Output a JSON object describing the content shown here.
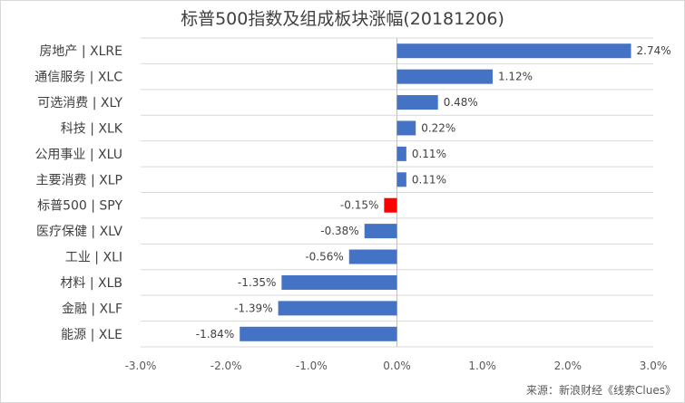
{
  "chart_data": {
    "type": "bar",
    "orientation": "horizontal",
    "title": "标普500指数及组成板块涨幅(20181206)",
    "categories": [
      "房地产 | XLRE",
      "通信服务 | XLC",
      "可选消费 | XLY",
      "科技 | XLK",
      "公用事业 | XLU",
      "主要消费 | XLP",
      "标普500 | SPY",
      "医疗保健 | XLV",
      "工业 | XLI",
      "材料 | XLB",
      "金融 | XLF",
      "能源 | XLE"
    ],
    "values": [
      2.74,
      1.12,
      0.48,
      0.22,
      0.11,
      0.11,
      -0.15,
      -0.38,
      -0.56,
      -1.35,
      -1.39,
      -1.84
    ],
    "value_labels": [
      "2.74%",
      "1.12%",
      "0.48%",
      "0.22%",
      "0.11%",
      "0.11%",
      "-0.15%",
      "-0.38%",
      "-0.56%",
      "-1.35%",
      "-1.39%",
      "-1.84%"
    ],
    "xlim": [
      -3.0,
      3.0
    ],
    "x_ticks": [
      -3.0,
      -2.0,
      -1.0,
      0.0,
      1.0,
      2.0,
      3.0
    ],
    "x_tick_labels": [
      "-3.0%",
      "-2.0%",
      "-1.0%",
      "0.0%",
      "1.0%",
      "2.0%",
      "3.0%"
    ],
    "grid": "horizontal",
    "bar_color": "#4472c4",
    "highlight_category": "标普500 | SPY",
    "highlight_color": "#ff0000",
    "source": "来源：新浪财经《线索Clues》"
  }
}
